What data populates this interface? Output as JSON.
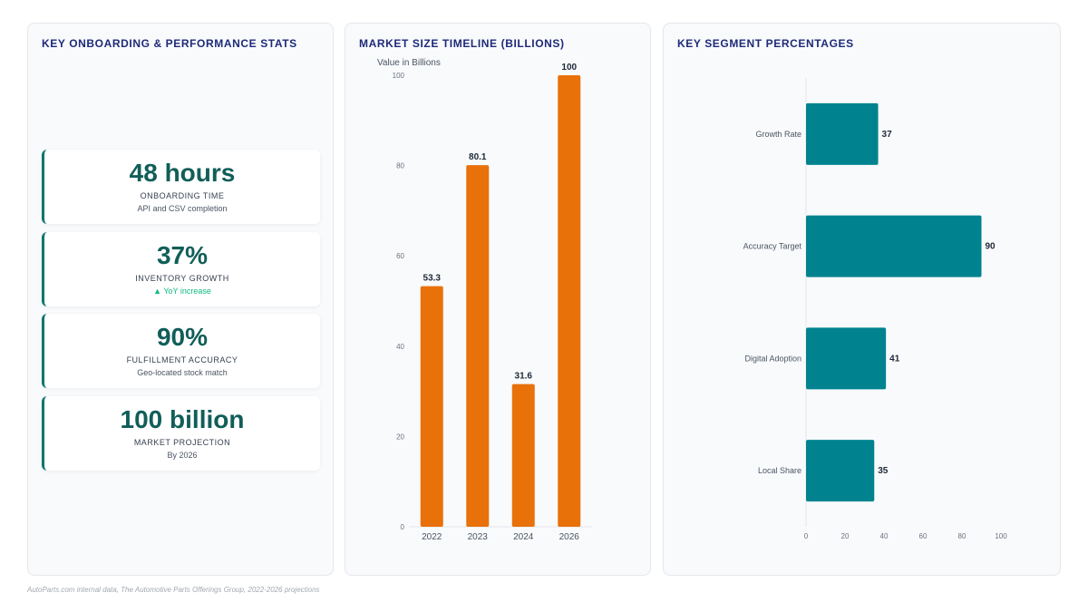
{
  "kpi_panel": {
    "title": "KEY ONBOARDING & PERFORMANCE STATS",
    "cards": [
      {
        "value": "48 hours",
        "label": "ONBOARDING TIME",
        "sub": "API and CSV completion",
        "trend": ""
      },
      {
        "value": "37%",
        "label": "INVENTORY GROWTH",
        "sub": "▲ YoY increase",
        "trend": "up"
      },
      {
        "value": "90%",
        "label": "FULFILLMENT ACCURACY",
        "sub": "Geo-located stock match",
        "trend": ""
      },
      {
        "value": "100 billion",
        "label": "MARKET PROJECTION",
        "sub": "By 2026",
        "trend": ""
      }
    ]
  },
  "bar_panel": {
    "title": "MARKET SIZE TIMELINE (BILLIONS)"
  },
  "hbar_panel": {
    "title": "KEY SEGMENT PERCENTAGES"
  },
  "chart_data": [
    {
      "type": "bar",
      "title": "MARKET SIZE TIMELINE (BILLIONS)",
      "ylabel": "Value in Billions",
      "xlabel": "",
      "categories": [
        "2022",
        "2023",
        "2024",
        "2026"
      ],
      "values": [
        53.3,
        80.1,
        31.6,
        100
      ],
      "value_labels": [
        "53.3",
        "80.1",
        "31.6",
        "100"
      ],
      "ylim": [
        0,
        100
      ],
      "yticks": [
        "0",
        "20",
        "40",
        "60",
        "80",
        "100"
      ],
      "color": "#e8710a",
      "grid": false
    },
    {
      "type": "bar",
      "orientation": "horizontal",
      "title": "KEY SEGMENT PERCENTAGES",
      "categories": [
        "Growth Rate",
        "Accuracy Target",
        "Digital Adoption",
        "Local Share"
      ],
      "values": [
        37,
        90,
        41,
        35
      ],
      "value_labels": [
        "37",
        "90",
        "41",
        "35"
      ],
      "xlim": [
        0,
        100
      ],
      "xticks": [
        "0",
        "20",
        "40",
        "60",
        "80",
        "100"
      ],
      "color": "#00838f",
      "grid": false
    }
  ],
  "footer": "AutoParts.com internal data, The Automotive Parts Offerings Group, 2022-2026 projections"
}
